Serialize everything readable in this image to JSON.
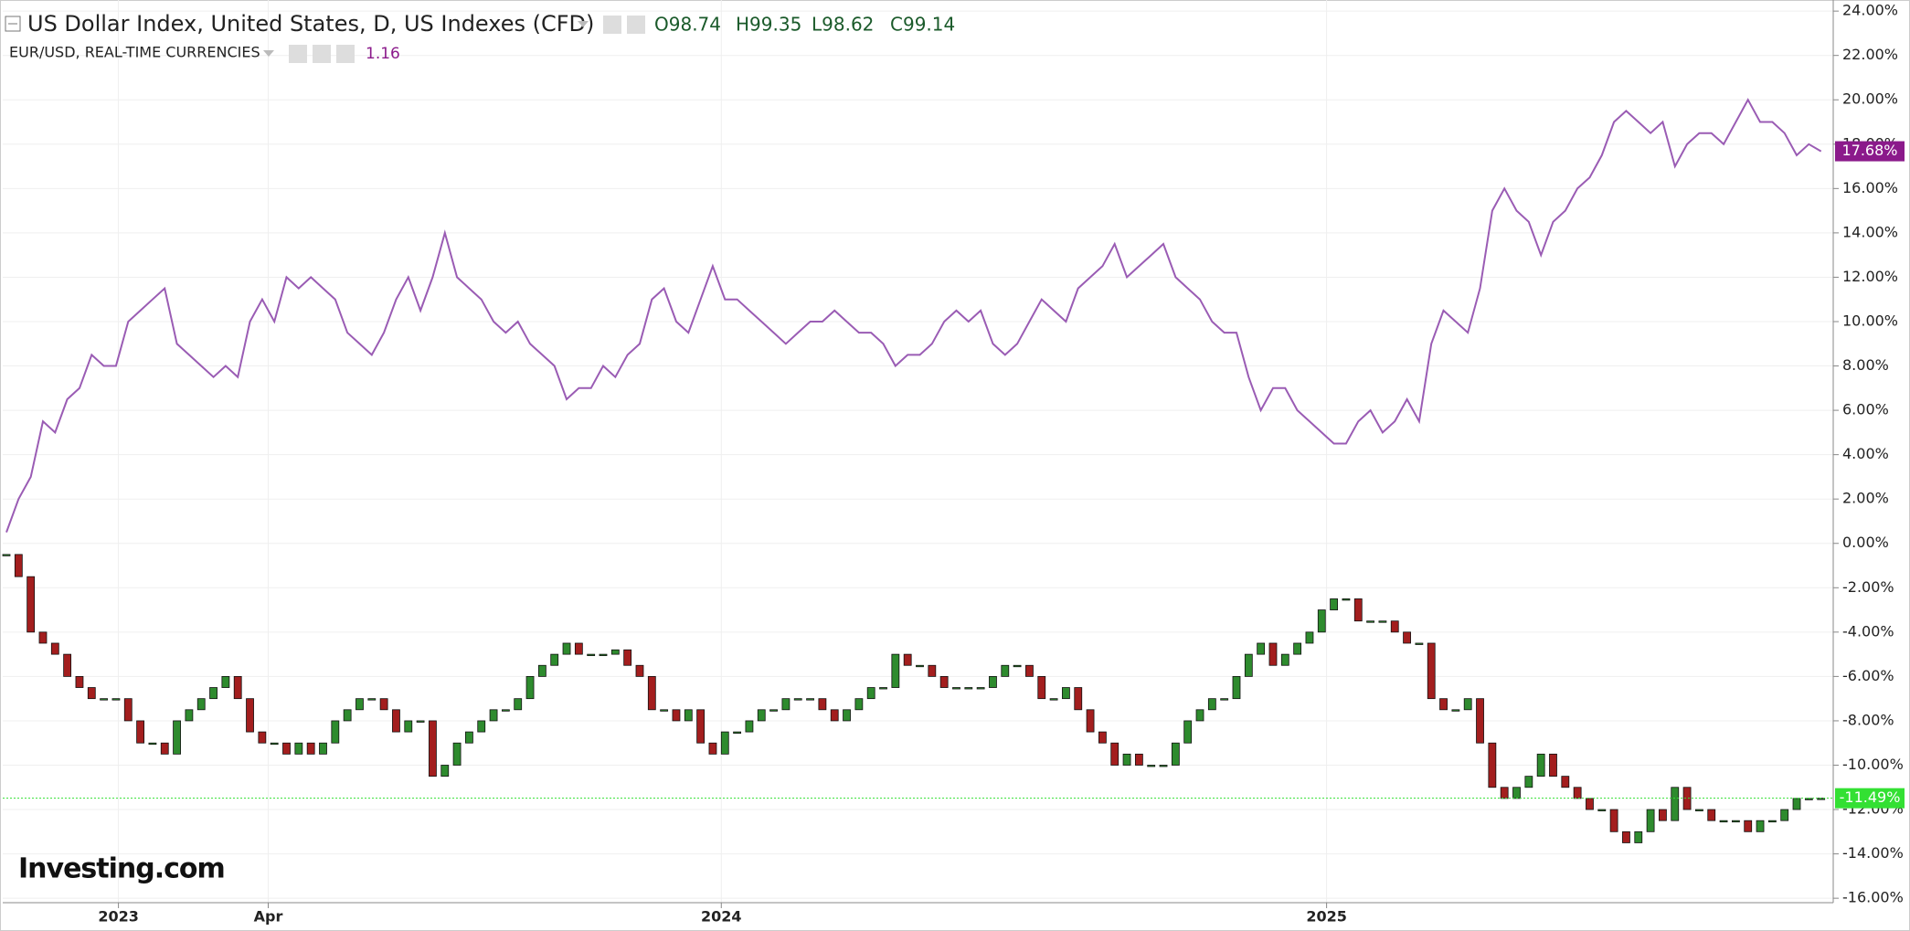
{
  "chart_data": {
    "type": "line",
    "header": {
      "open": "O98.74",
      "high": "H99.35",
      "low": "L98.62",
      "close": "C99.14",
      "last": "1.16"
    },
    "watermark": "Investing.com",
    "series": [
      {
        "name": "US Dollar Index, United States, D, US Indexes (CFD)",
        "mark": "candle",
        "color": "#2e8b2e",
        "down_color": "#a31e1e",
        "current_label": "-11.49%",
        "label_color": "#33e033",
        "values": [
          -0.5,
          -1.5,
          -4,
          -4.5,
          -5,
          -6,
          -6.5,
          -7,
          -7,
          -7,
          -8,
          -9,
          -9,
          -9.5,
          -8,
          -7.5,
          -7,
          -6.5,
          -6,
          -7,
          -8.5,
          -9,
          -9,
          -9.5,
          -9,
          -9.5,
          -9,
          -8,
          -7.5,
          -7,
          -7,
          -7.5,
          -8.5,
          -8,
          -8,
          -10.5,
          -10,
          -9,
          -8.5,
          -8,
          -7.5,
          -7.5,
          -7,
          -6,
          -5.5,
          -5,
          -4.5,
          -5,
          -5,
          -5,
          -4.8,
          -5.5,
          -6,
          -7.5,
          -7.5,
          -8,
          -7.5,
          -9,
          -9.5,
          -8.5,
          -8.5,
          -8,
          -7.5,
          -7.5,
          -7,
          -7,
          -7,
          -7.5,
          -8,
          -7.5,
          -7,
          -6.5,
          -6.5,
          -5,
          -5.5,
          -5.5,
          -6,
          -6.5,
          -6.5,
          -6.5,
          -6.5,
          -6,
          -5.5,
          -5.5,
          -6,
          -7,
          -7,
          -6.5,
          -7.5,
          -8.5,
          -9,
          -10,
          -9.5,
          -10,
          -10,
          -10,
          -9,
          -8,
          -7.5,
          -7,
          -7,
          -6,
          -5,
          -4.5,
          -5.5,
          -5,
          -4.5,
          -4,
          -3,
          -2.5,
          -2.5,
          -3.5,
          -3.5,
          -3.5,
          -4,
          -4.5,
          -4.5,
          -7,
          -7.5,
          -7.5,
          -7,
          -9,
          -11,
          -11.5,
          -11,
          -10.5,
          -9.5,
          -10.5,
          -11,
          -11.5,
          -12,
          -12,
          -13,
          -13.5,
          -13,
          -12,
          -12.5,
          -11,
          -12,
          -12,
          -12.5,
          -12.5,
          -12.5,
          -13,
          -12.5,
          -12.5,
          -12,
          -11.5,
          -11.5,
          -11.49
        ]
      },
      {
        "name": "EUR/USD, REAL-TIME CURRENCIES",
        "mark": "line",
        "color": "#9a5cb4",
        "current_label": "17.68%",
        "label_color": "#8b1a8b",
        "values": [
          0.5,
          2,
          3,
          5.5,
          5,
          6.5,
          7,
          8.5,
          8,
          8,
          10,
          10.5,
          11,
          11.5,
          9,
          8.5,
          8,
          7.5,
          8,
          7.5,
          10,
          11,
          10,
          12,
          11.5,
          12,
          11.5,
          11,
          9.5,
          9,
          8.5,
          9.5,
          11,
          12,
          10.5,
          12,
          14,
          12,
          11.5,
          11,
          10,
          9.5,
          10,
          9,
          8.5,
          8,
          6.5,
          7,
          7,
          8,
          7.5,
          8.5,
          9,
          11,
          11.5,
          10,
          9.5,
          11,
          12.5,
          11,
          11,
          10.5,
          10,
          9.5,
          9,
          9.5,
          10,
          10,
          10.5,
          10,
          9.5,
          9.5,
          9,
          8,
          8.5,
          8.5,
          9,
          10,
          10.5,
          10,
          10.5,
          9,
          8.5,
          9,
          10,
          11,
          10.5,
          10,
          11.5,
          12,
          12.5,
          13.5,
          12,
          12.5,
          13,
          13.5,
          12,
          11.5,
          11,
          10,
          9.5,
          9.5,
          7.5,
          6,
          7,
          7,
          6,
          5.5,
          5,
          4.5,
          4.5,
          5.5,
          6,
          5,
          5.5,
          6.5,
          5.5,
          9,
          10.5,
          10,
          9.5,
          11.5,
          15,
          16,
          15,
          14.5,
          13,
          14.5,
          15,
          16,
          16.5,
          17.5,
          19,
          19.5,
          19,
          18.5,
          19,
          17,
          18,
          18.5,
          18.5,
          18,
          19,
          20,
          19,
          19,
          18.5,
          17.5,
          18,
          17.68
        ]
      }
    ],
    "xlim": [
      -0.3,
      150
    ],
    "xticks": [
      {
        "value": 9.2,
        "label": "2023"
      },
      {
        "value": 21.5,
        "label": "Apr"
      },
      {
        "value": 58.7,
        "label": "2024"
      },
      {
        "value": 108.4,
        "label": "2025"
      }
    ],
    "ylim": [
      -16.2,
      24.5
    ],
    "yticks": [
      {
        "value": 24,
        "label": "24.00%"
      },
      {
        "value": 22,
        "label": "22.00%"
      },
      {
        "value": 20,
        "label": "20.00%"
      },
      {
        "value": 18,
        "label": "18.00%"
      },
      {
        "value": 16,
        "label": "16.00%"
      },
      {
        "value": 14,
        "label": "14.00%"
      },
      {
        "value": 12,
        "label": "12.00%"
      },
      {
        "value": 10,
        "label": "10.00%"
      },
      {
        "value": 8,
        "label": "8.00%"
      },
      {
        "value": 6,
        "label": "6.00%"
      },
      {
        "value": 4,
        "label": "4.00%"
      },
      {
        "value": 2,
        "label": "2.00%"
      },
      {
        "value": 0,
        "label": "0.00%"
      },
      {
        "value": -2,
        "label": "-2.00%"
      },
      {
        "value": -4,
        "label": "-4.00%"
      },
      {
        "value": -6,
        "label": "-6.00%"
      },
      {
        "value": -8,
        "label": "-8.00%"
      },
      {
        "value": -10,
        "label": "-10.00%"
      },
      {
        "value": -12,
        "label": "-12.00%"
      },
      {
        "value": -14,
        "label": "-14.00%"
      },
      {
        "value": -16,
        "label": "-16.00%"
      }
    ],
    "grid": true
  }
}
